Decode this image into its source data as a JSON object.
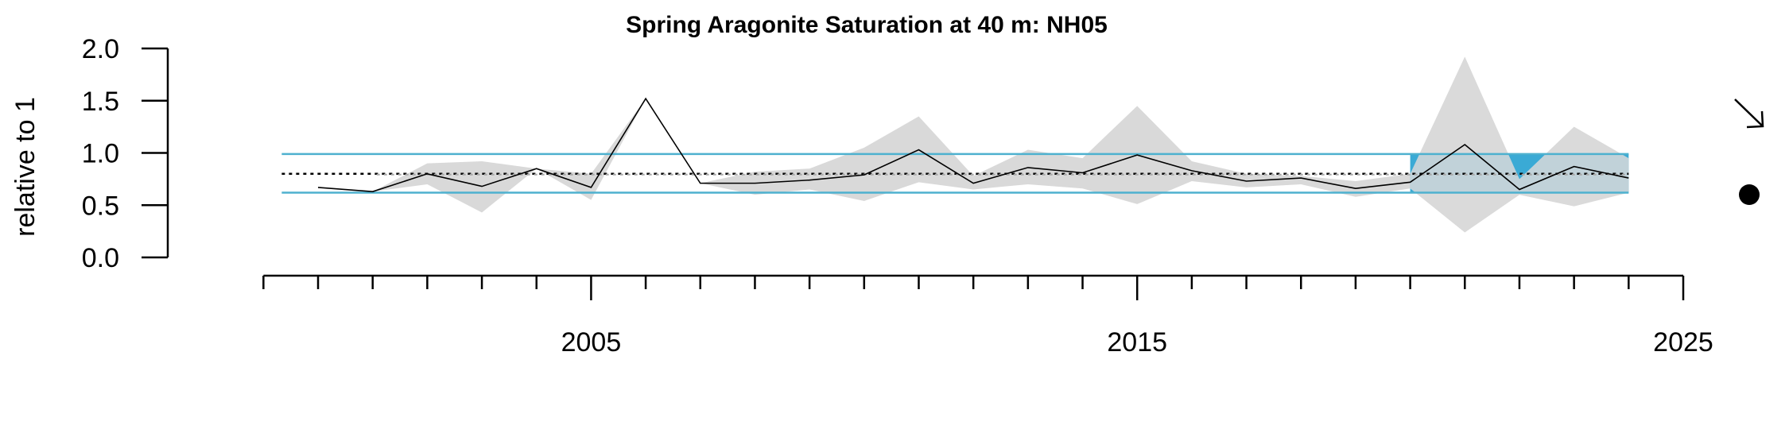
{
  "chart_data": {
    "type": "line",
    "title": "Spring Aragonite Saturation at 40 m: NH05",
    "ylabel": "relative to 1",
    "xlabel": "",
    "xlim": [
      1998.5,
      2025
    ],
    "ylim": [
      0,
      2.0
    ],
    "y_ticks": [
      "0.0",
      "0.5",
      "1.0",
      "1.5",
      "2.0"
    ],
    "x_tick_labels": [
      "2005",
      "2015",
      "2025"
    ],
    "x_minor_ticks": [
      1999,
      2000,
      2001,
      2002,
      2003,
      2004,
      2005,
      2006,
      2007,
      2008,
      2009,
      2010,
      2011,
      2012,
      2013,
      2014,
      2015,
      2016,
      2017,
      2018,
      2019,
      2020,
      2021,
      2022,
      2023,
      2024,
      2025
    ],
    "mean": 0.8,
    "sd_upper": 0.99,
    "sd_lower": 0.62,
    "recent_window": [
      2020,
      2024
    ],
    "series": [
      {
        "x": [
          2000,
          2001,
          2002,
          2003,
          2004,
          2005,
          2006,
          2007,
          2008,
          2009,
          2010,
          2011,
          2012,
          2013,
          2014,
          2015,
          2016,
          2017,
          2018,
          2019,
          2020,
          2021,
          2022,
          2023,
          2024
        ],
        "values": [
          0.67,
          0.63,
          0.8,
          0.68,
          0.85,
          0.67,
          1.52,
          0.71,
          0.71,
          0.74,
          0.79,
          1.03,
          0.71,
          0.86,
          0.81,
          0.98,
          0.83,
          0.73,
          0.76,
          0.66,
          0.72,
          1.08,
          0.65,
          0.87,
          0.76
        ],
        "upper": [
          0.67,
          0.63,
          0.9,
          0.92,
          0.85,
          0.8,
          1.52,
          0.71,
          0.82,
          0.85,
          1.05,
          1.35,
          0.78,
          1.03,
          0.95,
          1.45,
          0.92,
          0.8,
          0.78,
          0.73,
          0.8,
          1.92,
          0.75,
          1.25,
          0.95
        ],
        "lower": [
          0.67,
          0.63,
          0.7,
          0.43,
          0.85,
          0.55,
          1.52,
          0.71,
          0.6,
          0.65,
          0.54,
          0.72,
          0.65,
          0.7,
          0.66,
          0.51,
          0.73,
          0.67,
          0.7,
          0.58,
          0.66,
          0.24,
          0.6,
          0.49,
          0.62
        ]
      }
    ],
    "trend_icon": "arrow-down-right-icon",
    "status_icon": "filled-circle-icon",
    "colors": {
      "sd_lines": "#4eb1cf",
      "recent_fill": "#3aaad5",
      "band": "#d9d9d9",
      "mean_line": "#000000",
      "series": "#000000"
    }
  }
}
